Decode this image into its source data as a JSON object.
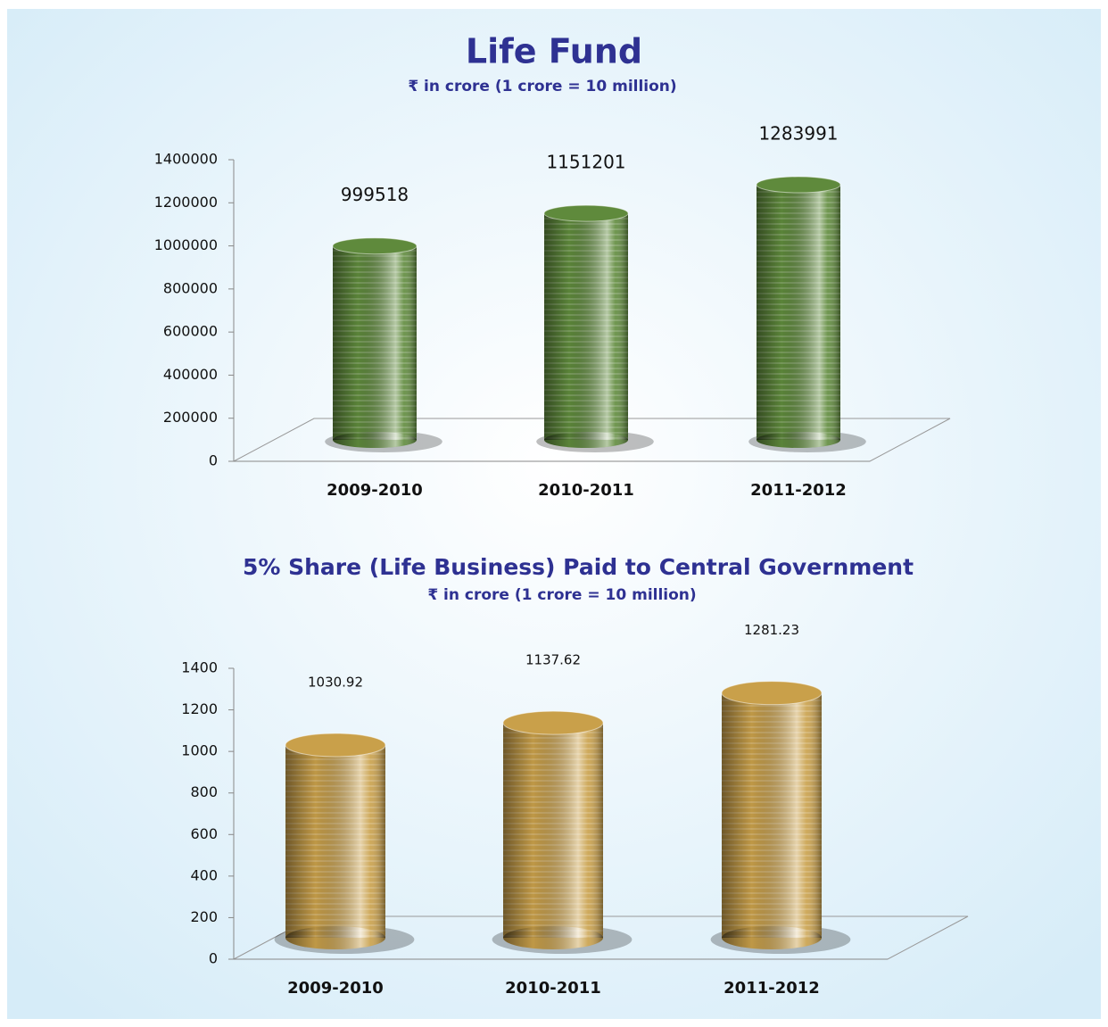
{
  "chart_data": [
    {
      "type": "bar",
      "title": "Life Fund",
      "subtitle": "₹ in crore (1 crore = 10 million)",
      "categories": [
        "2009-2010",
        "2010-2011",
        "2011-2012"
      ],
      "values": [
        999518,
        1151201,
        1283991
      ],
      "color": "#5f8a3c",
      "ylim": [
        0,
        1400000
      ],
      "yticks": [
        0,
        200000,
        400000,
        600000,
        800000,
        1000000,
        1200000,
        1400000
      ]
    },
    {
      "type": "bar",
      "title": "5% Share (Life Business) Paid to Central Government",
      "subtitle": "₹ in crore (1 crore = 10 million)",
      "categories": [
        "2009-2010",
        "2010-2011",
        "2011-2012"
      ],
      "values": [
        1030.92,
        1137.62,
        1281.23
      ],
      "color": "#c9a04a",
      "ylim": [
        0,
        1400
      ],
      "yticks": [
        0,
        200,
        400,
        600,
        800,
        1000,
        1200,
        1400
      ]
    }
  ]
}
